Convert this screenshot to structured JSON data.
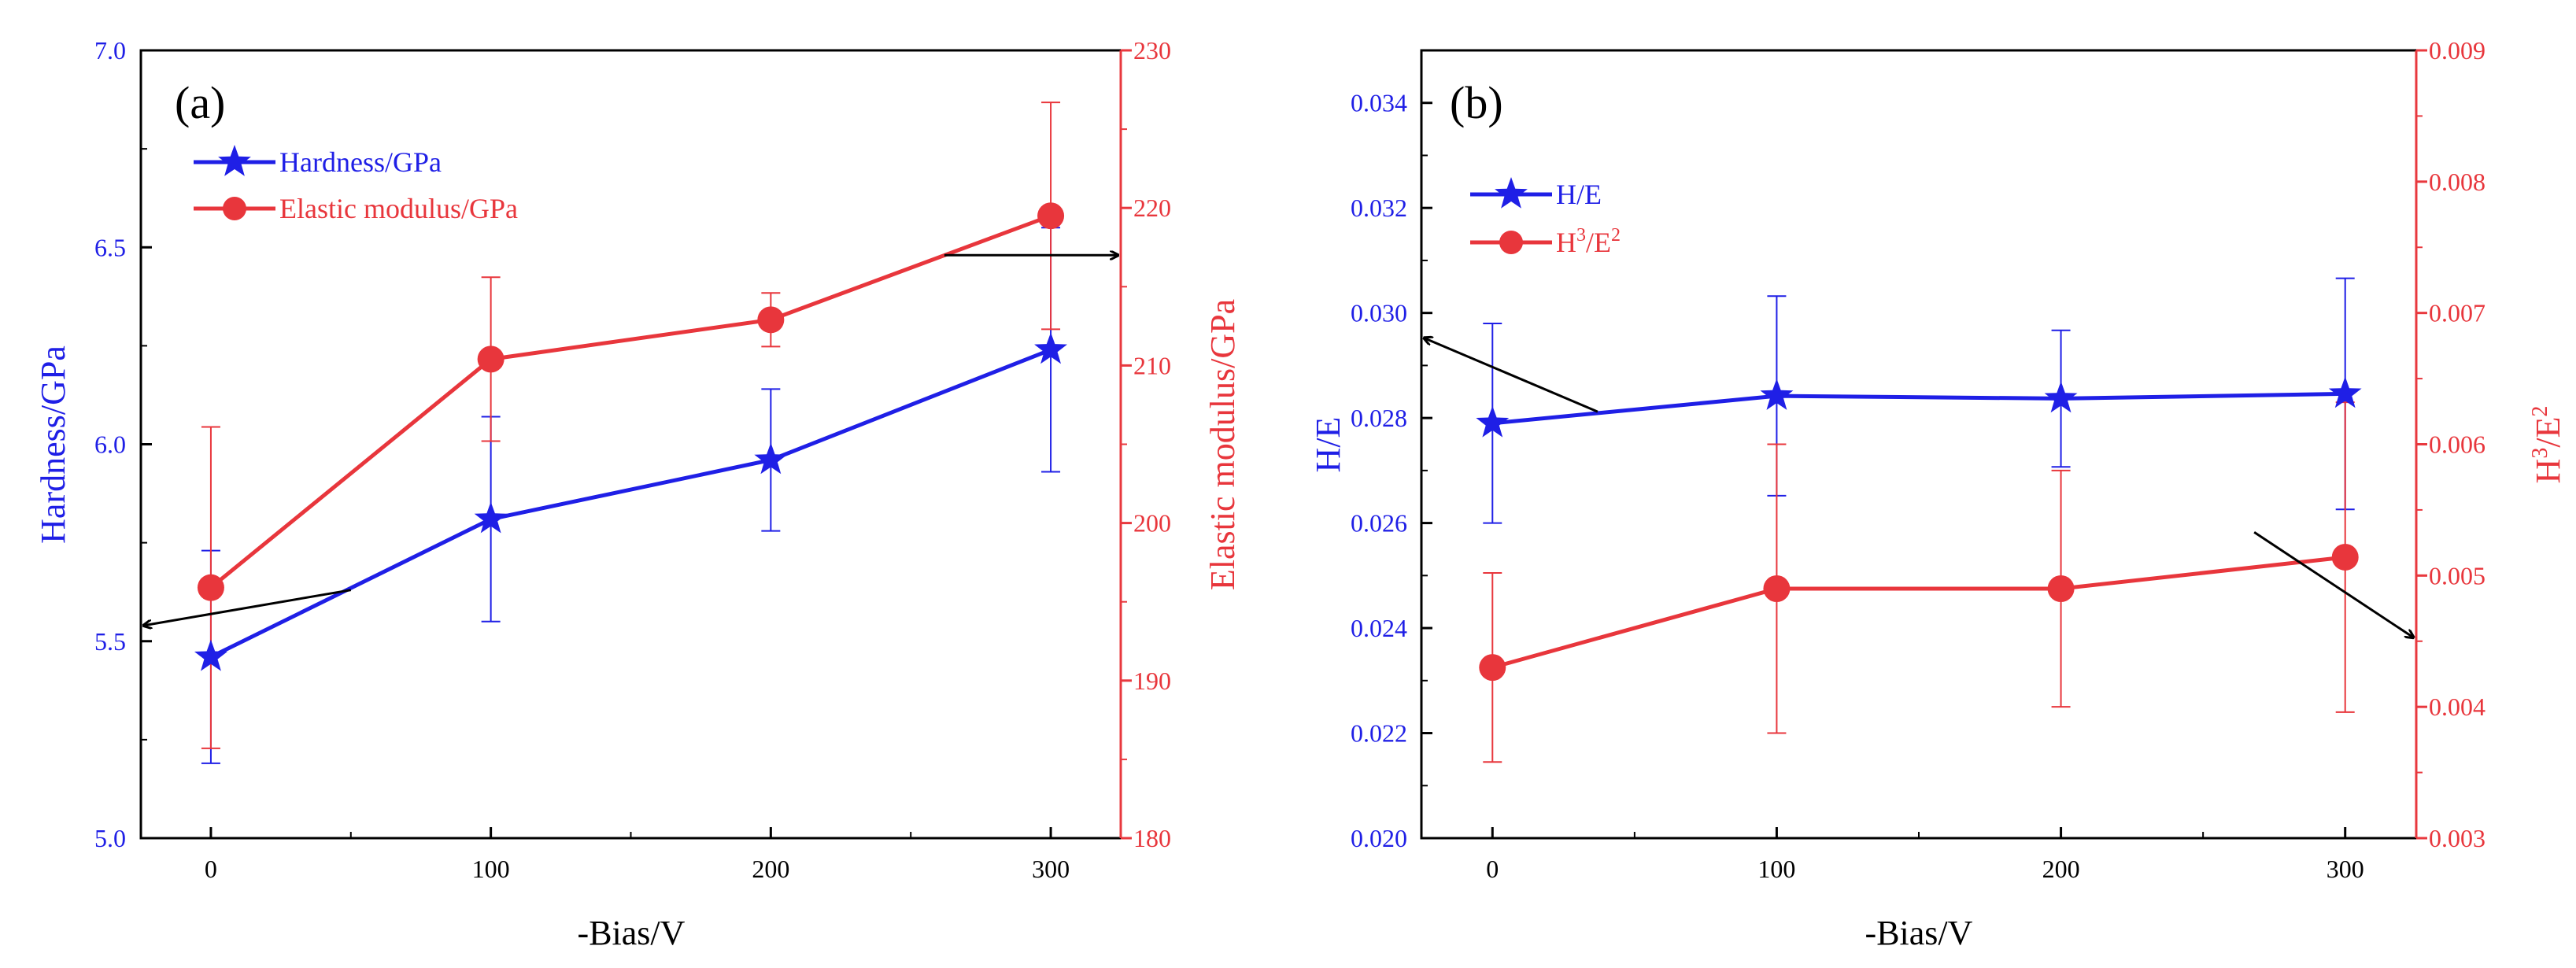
{
  "colors": {
    "blue": "#1f1fe6",
    "red": "#e8363c",
    "black": "#000000",
    "blue_axis": "#2a2ae8",
    "red_axis": "#e8383e"
  },
  "chart_data": [
    {
      "type": "line",
      "panel_label": "(a)",
      "xlabel": "-Bias/V",
      "ylabel_left": "Hardness/GPa",
      "ylabel_right": "Elastic modulus/GPa",
      "x": [
        0,
        100,
        200,
        300
      ],
      "x_ticks": [
        "0",
        "100",
        "200",
        "300"
      ],
      "xlim": [
        -25,
        325
      ],
      "ylim_left": [
        5.0,
        7.0
      ],
      "ylim_right": [
        180,
        230
      ],
      "left_ticks": [
        "5.0",
        "5.5",
        "6.0",
        "6.5",
        "7.0"
      ],
      "right_ticks": [
        "180",
        "190",
        "200",
        "210",
        "220",
        "230"
      ],
      "legend": {
        "position": "top-left",
        "entries": [
          "Hardness/GPa",
          "Elastic modulus/GPa"
        ]
      },
      "series": [
        {
          "name": "Hardness/GPa",
          "axis": "left",
          "marker": "star",
          "color": "#1f1fe6",
          "values": [
            5.46,
            5.81,
            5.96,
            6.24
          ],
          "err": [
            0.27,
            0.26,
            0.18,
            0.31
          ]
        },
        {
          "name": "Elastic modulus/GPa",
          "axis": "right",
          "marker": "circle",
          "color": "#e8363c",
          "values": [
            195.9,
            210.4,
            212.9,
            219.5
          ],
          "err": [
            10.2,
            5.2,
            1.7,
            7.2
          ]
        }
      ],
      "arrows": [
        {
          "from": [
            50,
            5.63
          ],
          "to": [
            -25,
            5.54
          ],
          "meaning": "left axis"
        },
        {
          "from": [
            262,
            6.48
          ],
          "to": [
            325,
            6.48
          ],
          "meaning": "right axis"
        }
      ]
    },
    {
      "type": "line",
      "panel_label": "(b)",
      "xlabel": "-Bias/V",
      "ylabel_left": "H/E",
      "ylabel_right_base": "H",
      "ylabel_right_sup": "3",
      "ylabel_right_mid": "/E",
      "ylabel_right_sup2": "2",
      "x": [
        0,
        100,
        200,
        300
      ],
      "x_ticks": [
        "0",
        "100",
        "200",
        "300"
      ],
      "xlim": [
        -25,
        325
      ],
      "ylim_left": [
        0.02,
        0.035
      ],
      "ylim_right": [
        0.003,
        0.009
      ],
      "left_ticks": [
        "0.020",
        "0.022",
        "0.024",
        "0.026",
        "0.028",
        "0.030",
        "0.032",
        "0.034"
      ],
      "right_ticks": [
        "0.003",
        "0.004",
        "0.005",
        "0.006",
        "0.007",
        "0.008",
        "0.009"
      ],
      "legend": {
        "position": "top-left",
        "entry1": "H/E",
        "entry2_base": "H",
        "entry2_sup": "3",
        "entry2_mid": "/E",
        "entry2_sup2": "2"
      },
      "series": [
        {
          "name": "H/E",
          "axis": "left",
          "marker": "star",
          "color": "#1f1fe6",
          "values": [
            0.0279,
            0.02842,
            0.02837,
            0.02846
          ],
          "err": [
            0.0019,
            0.0019,
            0.0013,
            0.0022
          ]
        },
        {
          "name": "H3/E2",
          "axis": "right",
          "marker": "circle",
          "color": "#e8363c",
          "values": [
            0.0043,
            0.0049,
            0.0049,
            0.00514
          ],
          "err": [
            0.00072,
            0.0011,
            0.0009,
            0.00118
          ]
        }
      ],
      "arrows": [
        {
          "from": [
            37,
            0.02812
          ],
          "to": [
            -25,
            0.02952
          ],
          "meaning": "left axis"
        },
        {
          "from": [
            268,
            0.00533
          ],
          "to": [
            325,
            0.00453
          ],
          "meaning": "right axis"
        }
      ]
    }
  ]
}
